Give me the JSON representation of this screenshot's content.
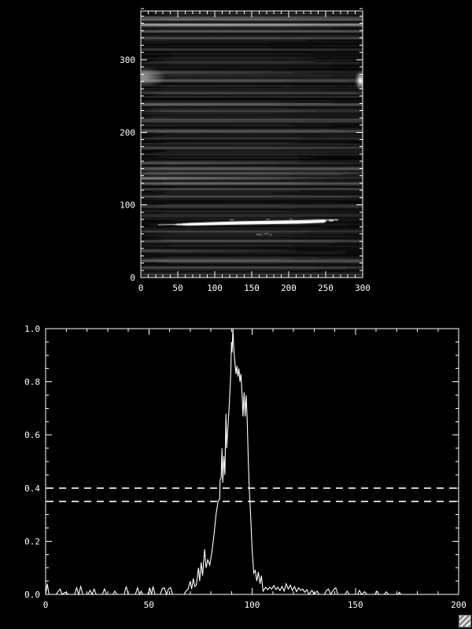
{
  "window": {
    "bg": "#000000",
    "fg": "#ffffff",
    "accent": "#ffffff"
  },
  "resize_grip": {
    "label": "",
    "color": "#c9c9c9"
  },
  "chart_data": [
    {
      "type": "heatmap",
      "title": "",
      "xlabel": "",
      "ylabel": "",
      "x_range": [
        0,
        300
      ],
      "y_range": [
        0,
        367
      ],
      "x_major_step": 50,
      "y_major_step": 100,
      "x_minor_step": 10,
      "y_minor_step": 10,
      "x_major_ticks": [
        0,
        50,
        100,
        150,
        200,
        250,
        300
      ],
      "x_tick_labels": [
        "0",
        "50",
        "100",
        "150",
        "200",
        "250",
        "300"
      ],
      "y_major_ticks": [
        0,
        100,
        200,
        300
      ],
      "y_tick_labels": [
        "0",
        "100",
        "200",
        "300"
      ],
      "grid": false,
      "colormap": "grayscale",
      "description": "dark 2D spectral image with horizontal streaks; saturated white emission streak near y=76 spanning x=40-250; diffuse bright blob at left edge near y=277; small bright crescent at right edge near y=272; faint marking near x=165 y=60",
      "streaks": [
        [
          359,
          70,
          2,
          0,
          1,
          0
        ],
        [
          356,
          95,
          2,
          0,
          1,
          0
        ],
        [
          349,
          140,
          3,
          0,
          1,
          0
        ],
        [
          340,
          75,
          3,
          0,
          1,
          0
        ],
        [
          331,
          55,
          3,
          0,
          1,
          0
        ],
        [
          315,
          45,
          2,
          0,
          1,
          0
        ],
        [
          283,
          50,
          4,
          0,
          1,
          1
        ],
        [
          272,
          60,
          3,
          0,
          1,
          0
        ],
        [
          255,
          45,
          2,
          0,
          1,
          0
        ],
        [
          239,
          80,
          3,
          0,
          1,
          0
        ],
        [
          230,
          45,
          2,
          0,
          1,
          0
        ],
        [
          217,
          60,
          3,
          0,
          1,
          0
        ],
        [
          202,
          70,
          3,
          0,
          1,
          0
        ],
        [
          192,
          45,
          2,
          0,
          1,
          0
        ],
        [
          179,
          50,
          3,
          0,
          1,
          0
        ],
        [
          158,
          75,
          3,
          0,
          1,
          1
        ],
        [
          150,
          80,
          3,
          0,
          1,
          0
        ],
        [
          144,
          65,
          2,
          0,
          1,
          0
        ],
        [
          137,
          115,
          3,
          0,
          1,
          1
        ],
        [
          130,
          75,
          3,
          0,
          1,
          0
        ],
        [
          122,
          60,
          2,
          0,
          1,
          0
        ],
        [
          112,
          50,
          2,
          0,
          1,
          0
        ],
        [
          98,
          45,
          2,
          0,
          1,
          0
        ],
        [
          85,
          40,
          2,
          0,
          1,
          0
        ],
        [
          64,
          50,
          2,
          0,
          1,
          0
        ],
        [
          50,
          55,
          2,
          0,
          1,
          0
        ],
        [
          37,
          60,
          3,
          0,
          0.7,
          1
        ],
        [
          23,
          70,
          3,
          0,
          1,
          0
        ],
        [
          14,
          60,
          2,
          0,
          1,
          0
        ],
        [
          4,
          50,
          2,
          0,
          1,
          0
        ]
      ],
      "features": {
        "white_streak": {
          "y": 76,
          "x0": 40,
          "x1": 250,
          "thin_x0": 22,
          "thin_x1": 265
        },
        "left_blob": {
          "x": 2,
          "y": 277
        },
        "right_crescent": {
          "x": 297,
          "y": 272
        },
        "small_mark": {
          "x": 165,
          "y": 60
        }
      }
    },
    {
      "type": "line",
      "title": "",
      "xlabel": "",
      "ylabel": "",
      "x_range": [
        0,
        200
      ],
      "y_range": [
        0,
        1.0
      ],
      "x_major_step": 50,
      "y_major_step": 0.2,
      "x_minor_step": 10,
      "y_minor_step": 0.05,
      "x_major_ticks": [
        0,
        50,
        100,
        150,
        200
      ],
      "x_tick_labels": [
        "0",
        "50",
        "100",
        "150",
        "200"
      ],
      "y_major_ticks": [
        0,
        0.2,
        0.4,
        0.6,
        0.8,
        1.0
      ],
      "y_tick_labels": [
        "0.0",
        "0.2",
        "0.4",
        "0.6",
        "0.8",
        "1.0"
      ],
      "grid": false,
      "legend": null,
      "line_color": "#ffffff",
      "thresholds": [
        0.4,
        0.35
      ],
      "threshold_style": "dashed",
      "points": [
        [
          0,
          0
        ],
        [
          0.8,
          0.04
        ],
        [
          1.6,
          0
        ],
        [
          5,
          0
        ],
        [
          7,
          0.02
        ],
        [
          8,
          0
        ],
        [
          9.5,
          0.008
        ],
        [
          11,
          0
        ],
        [
          14,
          0
        ],
        [
          15,
          0.025
        ],
        [
          16,
          0
        ],
        [
          17,
          0.03
        ],
        [
          18,
          0
        ],
        [
          20.5,
          0
        ],
        [
          21.5,
          0.015
        ],
        [
          22.5,
          0
        ],
        [
          23.5,
          0.02
        ],
        [
          24.5,
          0
        ],
        [
          27.5,
          0
        ],
        [
          28.5,
          0.02
        ],
        [
          29.5,
          0
        ],
        [
          32.5,
          0
        ],
        [
          33.5,
          0.012
        ],
        [
          34.5,
          0
        ],
        [
          38,
          0
        ],
        [
          39,
          0.03
        ],
        [
          40,
          0
        ],
        [
          43.5,
          0
        ],
        [
          44.5,
          0.025
        ],
        [
          45.5,
          0
        ],
        [
          46.2,
          0.012
        ],
        [
          47,
          0
        ],
        [
          49.5,
          0
        ],
        [
          50.5,
          0.022
        ],
        [
          51.3,
          0
        ],
        [
          52,
          0.03
        ],
        [
          53,
          0
        ],
        [
          55.5,
          0
        ],
        [
          56.5,
          0.022
        ],
        [
          57.5,
          0.025
        ],
        [
          58.5,
          0
        ],
        [
          59.5,
          0.02
        ],
        [
          60.5,
          0.026
        ],
        [
          61.5,
          0
        ],
        [
          67,
          0
        ],
        [
          68,
          0.012
        ],
        [
          69,
          0.02
        ],
        [
          70,
          0.05
        ],
        [
          70.7,
          0.02
        ],
        [
          71.5,
          0.06
        ],
        [
          72.2,
          0.03
        ],
        [
          73,
          0.035
        ],
        [
          74,
          0.1
        ],
        [
          74.6,
          0.05
        ],
        [
          75.3,
          0.12
        ],
        [
          76,
          0.07
        ],
        [
          77,
          0.17
        ],
        [
          77.7,
          0.1
        ],
        [
          78.5,
          0.13
        ],
        [
          79.5,
          0.11
        ],
        [
          80.5,
          0.16
        ],
        [
          81.5,
          0.22
        ],
        [
          82.5,
          0.3
        ],
        [
          83.5,
          0.35
        ],
        [
          84.3,
          0.36
        ],
        [
          84.5,
          0.43
        ],
        [
          85,
          0.44
        ],
        [
          85.4,
          0.55
        ],
        [
          85.8,
          0.42
        ],
        [
          86.3,
          0.52
        ],
        [
          86.8,
          0.45
        ],
        [
          87.3,
          0.68
        ],
        [
          87.7,
          0.55
        ],
        [
          88.2,
          0.62
        ],
        [
          89,
          0.72
        ],
        [
          89.6,
          0.82
        ],
        [
          90,
          0.95
        ],
        [
          90.3,
          0.91
        ],
        [
          90.7,
          1.0
        ],
        [
          91.1,
          0.93
        ],
        [
          91.6,
          0.88
        ],
        [
          92.1,
          0.83
        ],
        [
          92.6,
          0.86
        ],
        [
          93.1,
          0.82
        ],
        [
          93.6,
          0.85
        ],
        [
          94.1,
          0.8
        ],
        [
          94.6,
          0.83
        ],
        [
          95.1,
          0.76
        ],
        [
          95.6,
          0.67
        ],
        [
          96.1,
          0.76
        ],
        [
          96.6,
          0.67
        ],
        [
          97.1,
          0.75
        ],
        [
          97.6,
          0.66
        ],
        [
          98.1,
          0.52
        ],
        [
          98.6,
          0.4
        ],
        [
          99.2,
          0.31
        ],
        [
          100,
          0.17
        ],
        [
          100.8,
          0.08
        ],
        [
          101.5,
          0.09
        ],
        [
          102.3,
          0.05
        ],
        [
          103,
          0.085
        ],
        [
          103.8,
          0.04
        ],
        [
          104.5,
          0.07
        ],
        [
          105.3,
          0.012
        ],
        [
          106.5,
          0.027
        ],
        [
          107.5,
          0.018
        ],
        [
          108.5,
          0.027
        ],
        [
          109.5,
          0.02
        ],
        [
          110.5,
          0.033
        ],
        [
          111.5,
          0.018
        ],
        [
          112.5,
          0.027
        ],
        [
          113.5,
          0.015
        ],
        [
          114.5,
          0.03
        ],
        [
          115.5,
          0.012
        ],
        [
          116.5,
          0.04
        ],
        [
          117.5,
          0.02
        ],
        [
          118.5,
          0.035
        ],
        [
          119.5,
          0.015
        ],
        [
          120.5,
          0.03
        ],
        [
          121.5,
          0.01
        ],
        [
          122.5,
          0.025
        ],
        [
          123.5,
          0.015
        ],
        [
          124.5,
          0.02
        ],
        [
          125.5,
          0.008
        ],
        [
          126.5,
          0.018
        ],
        [
          127.5,
          0
        ],
        [
          129,
          0.015
        ],
        [
          130,
          0
        ],
        [
          131.5,
          0.012
        ],
        [
          132.5,
          0
        ],
        [
          135,
          0
        ],
        [
          136,
          0.015
        ],
        [
          137,
          0.02
        ],
        [
          138,
          0
        ],
        [
          139.5,
          0.018
        ],
        [
          140.5,
          0.025
        ],
        [
          141.5,
          0
        ],
        [
          145,
          0
        ],
        [
          146,
          0.012
        ],
        [
          147,
          0
        ],
        [
          151,
          0
        ],
        [
          152,
          0.015
        ],
        [
          153,
          0
        ],
        [
          154.5,
          0.01
        ],
        [
          155.5,
          0
        ],
        [
          159.5,
          0
        ],
        [
          160.5,
          0.012
        ],
        [
          161.5,
          0
        ],
        [
          164,
          0
        ],
        [
          165,
          0.01
        ],
        [
          166,
          0
        ],
        [
          170.5,
          0
        ],
        [
          171.3,
          0.008
        ],
        [
          172,
          0
        ],
        [
          200,
          0
        ]
      ]
    }
  ]
}
